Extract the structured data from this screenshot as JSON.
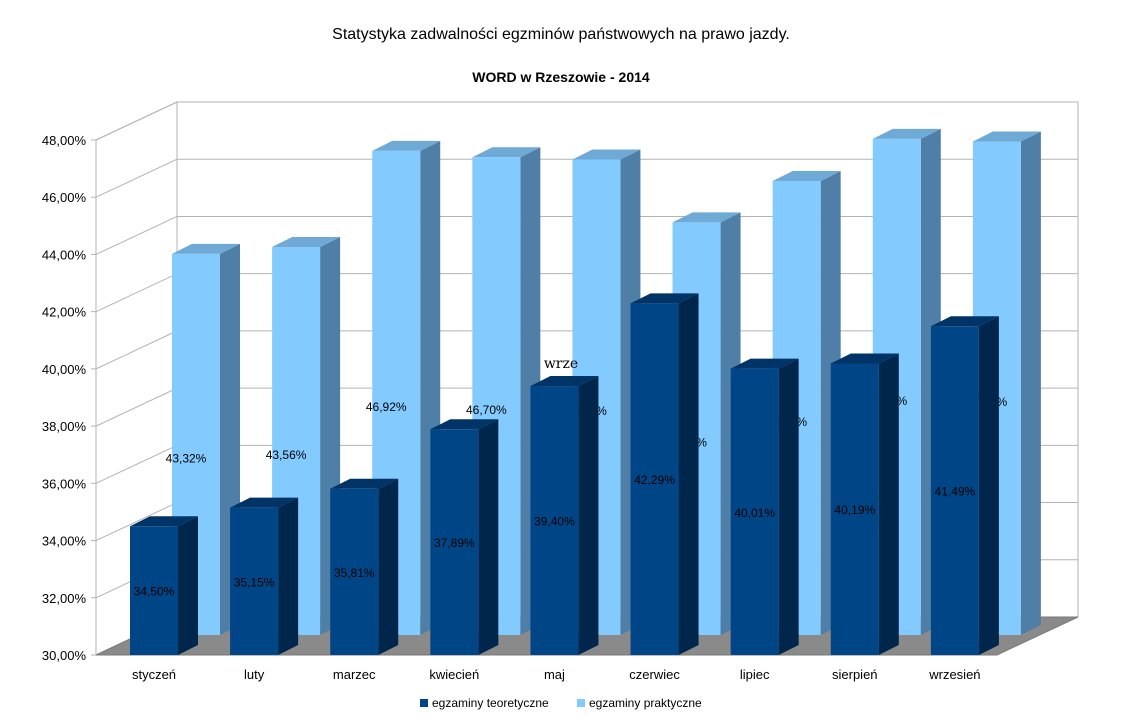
{
  "chart_data": {
    "type": "bar",
    "title": "Statystyka zadwalności egzminów państwowych na prawo jazdy.",
    "subtitle": "WORD w Rzeszowie - 2014",
    "categories": [
      "styczeń",
      "luty",
      "marzec",
      "kwiecień",
      "maj",
      "czerwiec",
      "lipiec",
      "sierpień",
      "wrzesień"
    ],
    "series": [
      {
        "name": "egzaminy teoretyczne",
        "values": [
          34.5,
          35.15,
          35.81,
          37.89,
          39.4,
          42.29,
          40.01,
          40.19,
          41.49
        ],
        "labels": [
          "34,50%",
          "35,15%",
          "35,81%",
          "37,89%",
          "39,40%",
          "42,29%",
          "40,01%",
          "40,19%",
          "41,49%"
        ],
        "color": "#004586"
      },
      {
        "name": "egzaminy praktyczne",
        "values": [
          43.32,
          43.56,
          46.92,
          46.7,
          46.62,
          44.42,
          45.87,
          47.34,
          47.25
        ],
        "labels": [
          "43,32%",
          "43,56%",
          "46,92%",
          "46,70%",
          "46,62%",
          "44,42%",
          "45,87%",
          "47,34%",
          "47,25%"
        ],
        "color": "#83caff"
      }
    ],
    "ylim": [
      30,
      48
    ],
    "yticks": [
      "30,00%",
      "32,00%",
      "34,00%",
      "36,00%",
      "38,00%",
      "40,00%",
      "42,00%",
      "44,00%",
      "46,00%",
      "48,00%"
    ],
    "grid": true,
    "legend": "bottom",
    "annotation": "wrze"
  }
}
